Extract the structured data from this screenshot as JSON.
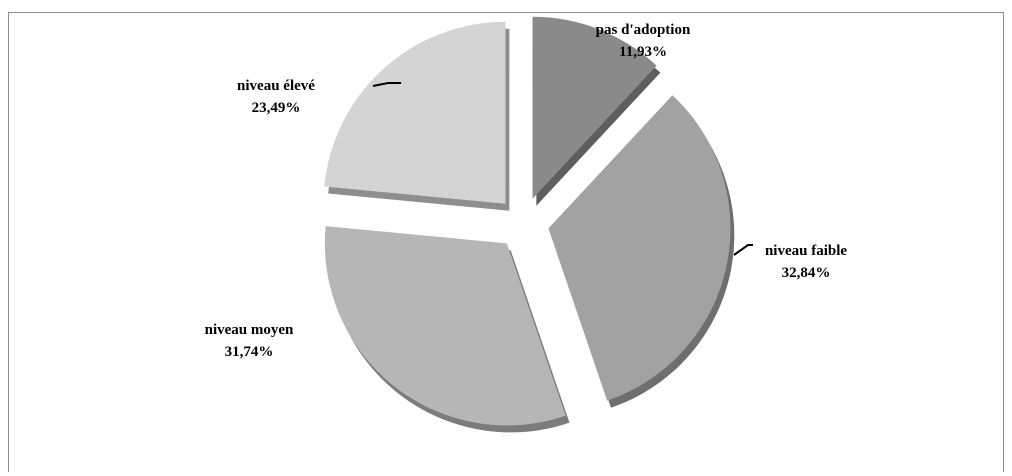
{
  "chart_data": {
    "type": "pie",
    "title": "",
    "slices": [
      {
        "label": "pas d'adoption",
        "value": 11.93,
        "value_label": "11,93%",
        "color": "#8a8a8a",
        "side_color": "#5e5e5e"
      },
      {
        "label": "niveau faible",
        "value": 32.84,
        "value_label": "32,84%",
        "color": "#a2a2a2",
        "side_color": "#6e6e6e"
      },
      {
        "label": "niveau moyen",
        "value": 31.74,
        "value_label": "31,74%",
        "color": "#b6b6b6",
        "side_color": "#7c7c7c"
      },
      {
        "label": "niveau élevé",
        "value": 23.49,
        "value_label": "23,49%",
        "color": "#d4d4d4",
        "side_color": "#8e8e8e"
      }
    ],
    "exploded": true,
    "legend": "none",
    "border_color": "#8c8c8c"
  }
}
